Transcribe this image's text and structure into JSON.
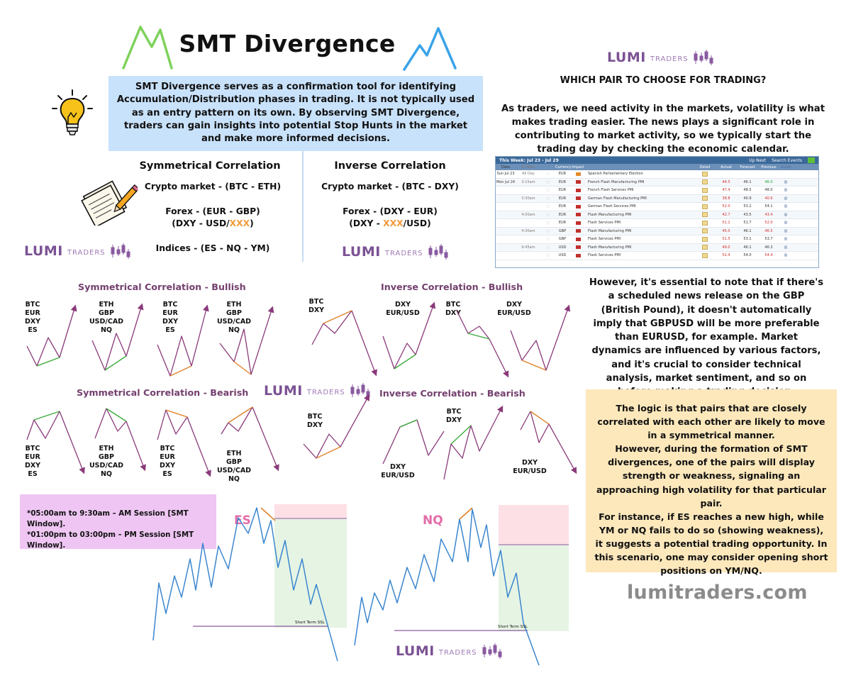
{
  "title": "SMT Divergence",
  "intro": "SMT Divergence serves as a confirmation tool for identifying Accumulation/Distribution phases in trading. It is not typically used as an entry pattern on its own. By observing SMT Divergence, traders can gain insights into potential Stop Hunts in the market and make more informed decisions.",
  "symmetrical": {
    "heading": "Symmetrical Correlation",
    "crypto": "Crypto market - (BTC - ETH)",
    "forex": "Forex - (EUR - GBP)",
    "forex2_pre": "(DXY - USD/",
    "forex2_hl": "XXX",
    "forex2_post": ")",
    "indices": "Indices - (ES - NQ - YM)"
  },
  "inverse": {
    "heading": "Inverse Correlation",
    "crypto": "Crypto market - (BTC - DXY)",
    "forex": "Forex - (DXY - EUR)",
    "forex2_pre": "(DXY - ",
    "forex2_hl": "XXX",
    "forex2_post": "/USD)"
  },
  "logo": {
    "lumi": "LUMI",
    "traders": "TRADERS"
  },
  "sections": {
    "sym_bull": "Symmetrical Correlation - Bullish",
    "inv_bull": "Inverse Correlation - Bullish",
    "sym_bear": "Symmetrical Correlation - Bearish",
    "inv_bear": "Inverse Correlation - Bearish"
  },
  "labels": {
    "set_btc": [
      "BTC",
      "EUR",
      "DXY",
      "ES"
    ],
    "set_eth": [
      "ETH",
      "GBP",
      "USD/CAD",
      "NQ"
    ],
    "btc_dxy": [
      "BTC",
      "DXY"
    ],
    "dxy_eurusd": [
      "DXY",
      "EUR/USD"
    ]
  },
  "session": {
    "am": "*05:00am to 9:30am – AM Session [SMT Window].",
    "pm": "*01:00pm to 03:00pm – PM Session [SMT Window]."
  },
  "es_label": "ES",
  "nq_label": "NQ",
  "ssl_label": "Short Term SSL",
  "which_pair": "WHICH PAIR TO CHOOSE FOR TRADING?",
  "para1": "As traders, we need activity in the markets, volatility is what makes trading easier. The news plays a significant role in contributing to market activity, so we typically start the trading day by checking the economic calendar.",
  "calendar": {
    "week": "This Week: Jul 23 - Jul 29",
    "up_next": "Up Next",
    "search": "Search Events",
    "headers": [
      "Date",
      "8:38pm",
      "Currency",
      "Impact",
      "Detail",
      "Actual",
      "Forecast",
      "Previous",
      "Graph"
    ],
    "rows": [
      {
        "date": "Sun Jul 23",
        "time": "All Day",
        "cur": "EUR",
        "imp": "med",
        "ev": "Spanish Parliamentary Election",
        "act": "",
        "fc": "",
        "pr": "",
        "prc": ""
      },
      {
        "date": "Mon Jul 24",
        "time": "3:15am",
        "cur": "EUR",
        "imp": "high",
        "ev": "French Flash Manufacturing PMI",
        "act": "44.5",
        "fc": "46.1",
        "pr": "46.0",
        "prc": "grn"
      },
      {
        "date": "",
        "time": "",
        "cur": "EUR",
        "imp": "high",
        "ev": "French Flash Services PMI",
        "act": "47.4",
        "fc": "48.5",
        "pr": "48.0",
        "prc": ""
      },
      {
        "date": "",
        "time": "3:30am",
        "cur": "EUR",
        "imp": "high",
        "ev": "German Flash Manufacturing PMI",
        "act": "38.8",
        "fc": "40.9",
        "pr": "40.6",
        "prc": "red"
      },
      {
        "date": "",
        "time": "",
        "cur": "EUR",
        "imp": "high",
        "ev": "German Flash Services PMI",
        "act": "52.0",
        "fc": "53.2",
        "pr": "54.1",
        "prc": ""
      },
      {
        "date": "",
        "time": "4:00am",
        "cur": "EUR",
        "imp": "high",
        "ev": "Flash Manufacturing PMI",
        "act": "42.7",
        "fc": "43.5",
        "pr": "43.4",
        "prc": "red"
      },
      {
        "date": "",
        "time": "",
        "cur": "EUR",
        "imp": "high",
        "ev": "Flash Services PMI",
        "act": "51.1",
        "fc": "51.7",
        "pr": "52.0",
        "prc": "red"
      },
      {
        "date": "",
        "time": "4:30am",
        "cur": "GBP",
        "imp": "high",
        "ev": "Flash Manufacturing PMI",
        "act": "45.0",
        "fc": "46.1",
        "pr": "46.5",
        "prc": "red"
      },
      {
        "date": "",
        "time": "",
        "cur": "GBP",
        "imp": "high",
        "ev": "Flash Services PMI",
        "act": "51.5",
        "fc": "53.1",
        "pr": "53.7",
        "prc": ""
      },
      {
        "date": "",
        "time": "9:45am",
        "cur": "USD",
        "imp": "high",
        "ev": "Flash Manufacturing PMI",
        "act": "49.0",
        "fc": "46.1",
        "pr": "46.3",
        "prc": ""
      },
      {
        "date": "",
        "time": "",
        "cur": "USD",
        "imp": "high",
        "ev": "Flash Services PMI",
        "act": "52.4",
        "fc": "54.0",
        "pr": "54.4",
        "prc": "red"
      }
    ]
  },
  "para2": "However, it's essential to note that if there's a scheduled news release on the GBP (British Pound), it doesn't automatically imply that GBPUSD will be more preferable than EURUSD, for example. Market dynamics are influenced by various factors, and it's crucial to consider technical analysis, market sentiment, and  so on before making a trading decision.",
  "logic": "The logic is that pairs that are closely correlated with each other are likely to move in a symmetrical manner.\nHowever, during the formation of SMT divergences, one of the pairs will display strength or weakness, signaling an approaching high volatility for that particular pair.\nFor instance, if ES reaches a new high, while YM or NQ fails to do so (showing weakness), it suggests a potential trading opportunity. In this scenario, one may consider opening short positions on YM/NQ.",
  "website": "lumitraders.com",
  "colors": {
    "intro_bg": "#c9e2fb",
    "logic_bg": "#fde8bc",
    "session_bg": "#efc6f3",
    "wave": "#8a3a7a",
    "price": "#3a86cf",
    "green": "#3aab3a",
    "orange": "#e0822a"
  }
}
